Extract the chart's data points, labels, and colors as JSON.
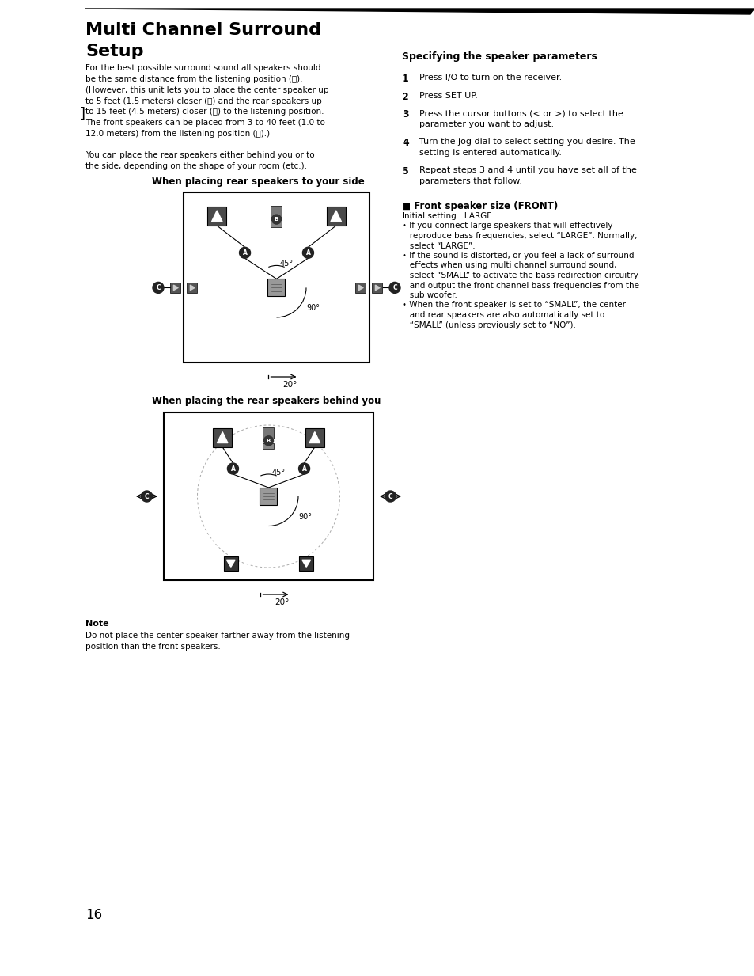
{
  "page_bg": "#ffffff",
  "title_line1": "Multi Channel Surround",
  "title_line2": "Setup",
  "body_text_1": "For the best possible surround sound all speakers should\nbe the same distance from the listening position (Ⓐ).\n(However, this unit lets you to place the center speaker up\nto 5 feet (1.5 meters) closer (Ⓑ) and the rear speakers up\nto 15 feet (4.5 meters) closer (Ⓒ) to the listening position.\nThe front speakers can be placed from 3 to 40 feet (1.0 to\n12.0 meters) from the listening position (Ⓐ).)",
  "body_text_2": "You can place the rear speakers either behind you or to\nthe side, depending on the shape of your room (etc.).",
  "diagram1_title": "When placing rear speakers to your side",
  "diagram2_title": "When placing the rear speakers behind you",
  "note_title": "Note",
  "note_text": "Do not place the center speaker farther away from the listening\nposition than the front speakers.",
  "page_number": "16",
  "right_section_title": "Specifying the speaker parameters",
  "steps": [
    {
      "num": "1",
      "text": "Press I/℧ to turn on the receiver."
    },
    {
      "num": "2",
      "text": "Press SET UP."
    },
    {
      "num": "3",
      "text": "Press the cursor buttons (< or >) to select the\nparameter you want to adjust."
    },
    {
      "num": "4",
      "text": "Turn the jog dial to select setting you desire. The\nsetting is entered automatically."
    },
    {
      "num": "5",
      "text": "Repeat steps 3 and 4 until you have set all of the\nparameters that follow."
    }
  ],
  "front_speaker_title": "■ Front speaker size (FRONT)",
  "front_speaker_lines": [
    "Initial setting : LARGE",
    "• If you connect large speakers that will effectively",
    "   reproduce bass frequencies, select “LARGE”. Normally,",
    "   select “LARGE”.",
    "• If the sound is distorted, or you feel a lack of surround",
    "   effects when using multi channel surround sound,",
    "   select “SMALL” to activate the bass redirection circuitry",
    "   and output the front channel bass frequencies from the",
    "   sub woofer.",
    "• When the front speaker is set to “SMALL”, the center",
    "   and rear speakers are also automatically set to",
    "   “SMALL” (unless previously set to “NO”)."
  ]
}
